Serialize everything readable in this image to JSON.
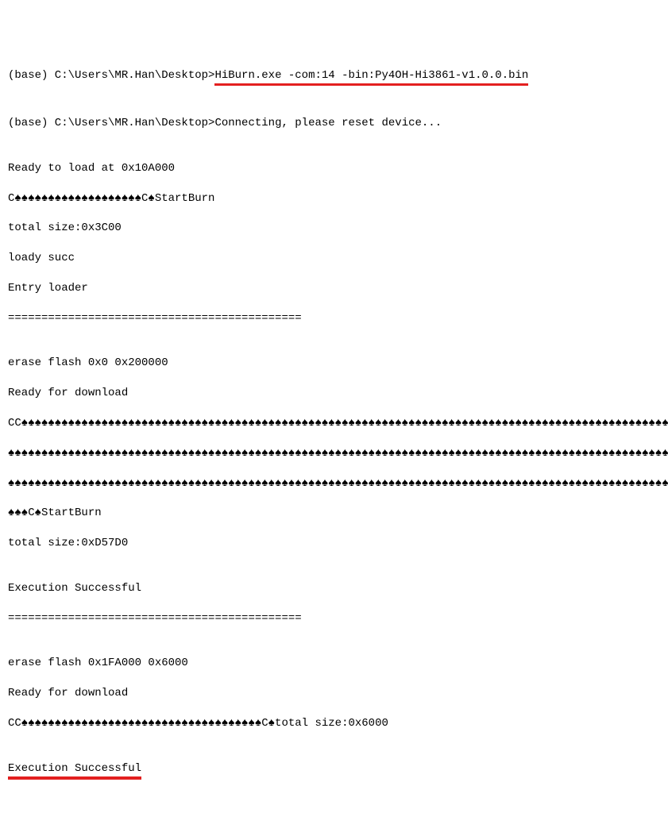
{
  "prompt1_prefix": "(base) C:\\Users\\MR.Han\\Desktop>",
  "prompt1_cmd": "HiBurn.exe -com:14 -bin:Py4OH-Hi3861-v1.0.0.bin",
  "blank": "",
  "prompt2_prefix": "(base) C:\\Users\\MR.Han\\Desktop>",
  "prompt2_msg": "Connecting, please reset device...",
  "ready_load": "Ready to load at 0x10A000",
  "startburn1": "C♠♠♠♠♠♠♠♠♠♠♠♠♠♠♠♠♠♠♠C♠StartBurn",
  "totalsize1": "total size:0x3C00",
  "loady_succ": "loady succ",
  "entry_loader": "Entry loader",
  "divider1": "============================================",
  "erase1": "erase flash 0x0 0x200000",
  "ready_dl1": "Ready for download",
  "spades1": "CC♠♠♠♠♠♠♠♠♠♠♠♠♠♠♠♠♠♠♠♠♠♠♠♠♠♠♠♠♠♠♠♠♠♠♠♠♠♠♠♠♠♠♠♠♠♠♠♠♠♠♠♠♠♠♠♠♠♠♠♠♠♠♠♠♠♠♠♠♠♠♠♠♠♠♠♠♠♠♠♠♠♠♠♠♠♠♠♠♠♠♠♠♠♠♠♠♠♠♠♠♠♠♠♠♠♠♠♠♠♠",
  "spades2": "♠♠♠♠♠♠♠♠♠♠♠♠♠♠♠♠♠♠♠♠♠♠♠♠♠♠♠♠♠♠♠♠♠♠♠♠♠♠♠♠♠♠♠♠♠♠♠♠♠♠♠♠♠♠♠♠♠♠♠♠♠♠♠♠♠♠♠♠♠♠♠♠♠♠♠♠♠♠♠♠♠♠♠♠♠♠♠♠♠♠♠♠♠♠♠♠♠♠♠♠♠♠♠♠♠♠♠♠♠♠♠♠",
  "spades3": "♠♠♠♠♠♠♠♠♠♠♠♠♠♠♠♠♠♠♠♠♠♠♠♠♠♠♠♠♠♠♠♠♠♠♠♠♠♠♠♠♠♠♠♠♠♠♠♠♠♠♠♠♠♠♠♠♠♠♠♠♠♠♠♠♠♠♠♠♠♠♠♠♠♠♠♠♠♠♠♠♠♠♠♠♠♠♠♠♠♠♠♠♠♠♠♠♠♠♠♠♠♠♠♠♠♠♠",
  "startburn2": "♠♠♠C♠StartBurn",
  "totalsize2": "total size:0xD57D0",
  "exec1": "Execution Successful",
  "divider2": "============================================",
  "erase2": "erase flash 0x1FA000 0x6000",
  "ready_dl2": "Ready for download",
  "spades4": "CC♠♠♠♠♠♠♠♠♠♠♠♠♠♠♠♠♠♠♠♠♠♠♠♠♠♠♠♠♠♠♠♠♠♠♠♠C♠total size:0x6000",
  "exec2": "Execution Successful",
  "underline_color": "#e32020",
  "bg_color": "#ffffff",
  "text_color": "#000000",
  "font_family": "Consolas, Courier New, monospace",
  "font_size_pt": 11
}
